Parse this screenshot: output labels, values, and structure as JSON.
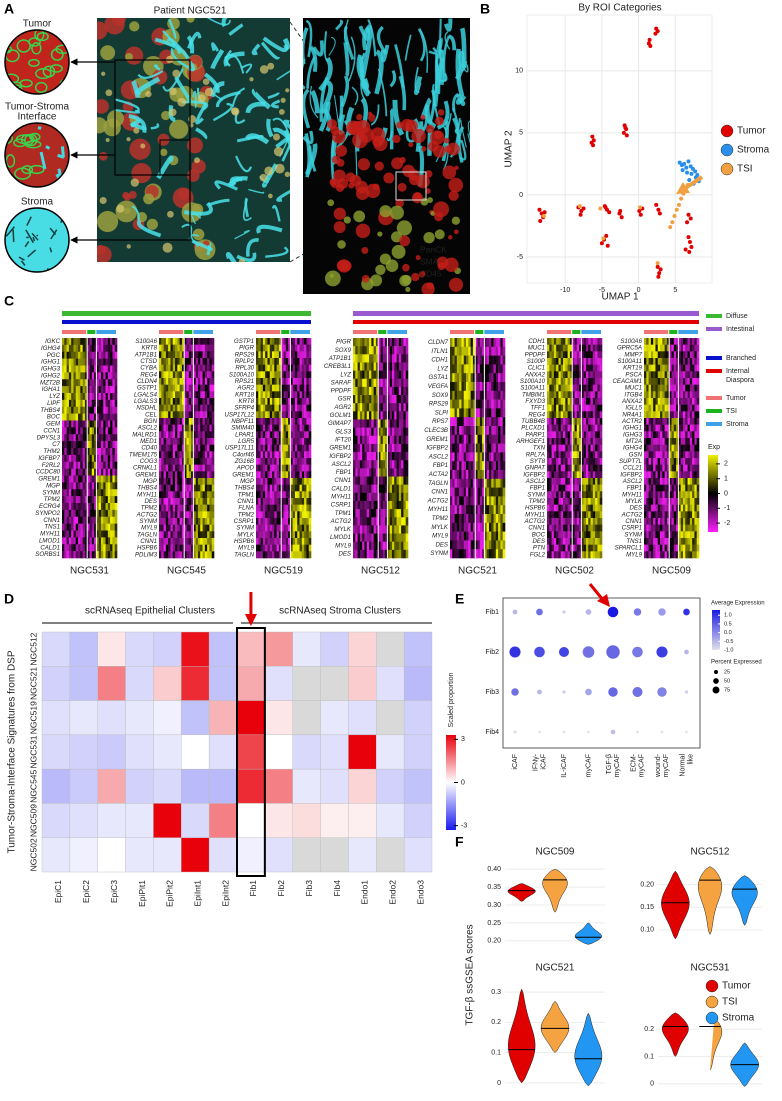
{
  "panel_labels": [
    "A",
    "B",
    "C",
    "D",
    "E",
    "F"
  ],
  "panel_a": {
    "title": "Patient NGC521",
    "insets": [
      {
        "lines": [
          "Tumor"
        ]
      },
      {
        "lines": [
          "Tumor-Stroma",
          "Interface"
        ]
      },
      {
        "lines": [
          "Stroma"
        ]
      }
    ],
    "stains": [
      {
        "name": "PanCK",
        "color": "#35d07a"
      },
      {
        "name": "SMA",
        "color": "#27b6e0"
      },
      {
        "name": "CD45",
        "color": "#e8322a"
      }
    ]
  },
  "panel_b": {
    "type": "scatter",
    "title": "By ROI Categories",
    "x_label": "UMAP 1",
    "y_label": "UMAP 2",
    "xlim": [
      -15.2,
      10
    ],
    "ylim": [
      -7.1,
      14.5
    ],
    "xticks": [
      -10,
      -5,
      0,
      5
    ],
    "yticks": [
      -5,
      0,
      5,
      10
    ],
    "grid": true,
    "series": [
      {
        "name": "Tumor",
        "color": "#e00000",
        "x": [
          2.4,
          2.6,
          2.3,
          1.4,
          1.6,
          1.5,
          -6.3,
          -6.1,
          -6.4,
          -6.2,
          -1.9,
          -1.7,
          -2.0,
          -1.6,
          -1.8,
          -13.5,
          -13.2,
          -13.0,
          -12.8,
          -13.4,
          -8.2,
          -7.8,
          -7.5,
          -7.9,
          -4.6,
          -4.3,
          -4.0,
          -4.5,
          -2.6,
          -2.3,
          -2.5,
          -5.0,
          -4.7,
          -4.4,
          -4.2,
          0.1,
          0.3,
          0.5,
          2.4,
          2.7,
          2.9,
          2.6,
          2.8,
          3.0,
          2.7,
          6.8,
          7.0,
          7.2,
          6.9,
          6.6,
          6.8,
          7.1,
          6.4
        ],
        "y": [
          13.4,
          13.2,
          13.0,
          12.2,
          12.0,
          12.5,
          4.7,
          4.4,
          4.2,
          4.0,
          5.6,
          5.3,
          5.0,
          4.8,
          5.4,
          -1.2,
          -1.5,
          -1.8,
          -1.4,
          -2.1,
          -1.0,
          -1.3,
          -1.1,
          -1.6,
          -0.9,
          -1.2,
          -1.4,
          -1.0,
          -1.5,
          -1.8,
          -1.3,
          -3.9,
          -3.6,
          -3.3,
          -4.1,
          -1.3,
          -1.6,
          -1.1,
          -0.8,
          -1.2,
          -1.5,
          -5.8,
          -6.3,
          -6.0,
          -6.6,
          -3.4,
          -3.8,
          -4.2,
          -4.6,
          -2.2,
          -1.6,
          -1.9,
          -4.4
        ]
      },
      {
        "name": "Stroma",
        "color": "#2a8fe8",
        "x": [
          5.6,
          5.9,
          6.2,
          6.5,
          6.8,
          7.1,
          7.4,
          7.7,
          8.0,
          8.3,
          6.0,
          6.6,
          7.2,
          7.8,
          8.2,
          6.9,
          7.5
        ],
        "y": [
          2.6,
          2.4,
          2.5,
          2.2,
          2.7,
          2.3,
          2.1,
          1.9,
          1.6,
          1.3,
          2.0,
          1.8,
          1.7,
          1.4,
          1.1,
          1.2,
          0.9
        ]
      },
      {
        "name": "TSI",
        "color": "#f0a040",
        "x": [
          4.3,
          4.6,
          4.9,
          5.2,
          5.5,
          5.8,
          6.1,
          6.4,
          6.7,
          2.6,
          -4.8,
          -5.2,
          -12.9,
          -8.0,
          0.2
        ],
        "y": [
          -2.6,
          -2.2,
          -1.7,
          -1.2,
          -0.8,
          -0.3,
          0.1,
          0.5,
          0.8,
          -5.5,
          -3.5,
          -1.1,
          -1.7,
          -0.9,
          -1.0
        ]
      }
    ]
  },
  "panel_c": {
    "highlight_color": "#e00000",
    "blocks": [
      {
        "name": "NGC531",
        "highlight": 20,
        "genes": [
          "IGKC",
          "IGHG4",
          "PGC",
          "IGHG1",
          "IGHG3",
          "IGHG2",
          "MZT2B",
          "IGHA1",
          "LYZ",
          "LIPF",
          "THBS4",
          "BOC",
          "GEM",
          "CCN1",
          "DPYSL3",
          "C7",
          "THM2",
          "IGFBP7",
          "F2RL2",
          "CCDC80",
          "GREM1",
          "MGP",
          "SYNM",
          "TPM2",
          "ECRG4",
          "SYNPO2",
          "CNN1",
          "TNS1",
          "MYH11",
          "LMOD1",
          "CALD1",
          "SORBS1"
        ]
      },
      {
        "name": "NGC545",
        "highlight": 20,
        "genes": [
          "S100A6",
          "KRT8",
          "ATP1B1",
          "CTSD",
          "CYBA",
          "REG4",
          "CLDN4",
          "GSTP1",
          "LGALS4",
          "LGALS3",
          "NSDHL",
          "CEL",
          "BGN",
          "ASCL2",
          "MALRD1",
          "MED1",
          "CD40",
          "TMEM175",
          "COG3",
          "CRNKL1",
          "GREM1",
          "MGP",
          "THBS4",
          "MYH11",
          "DES",
          "TPM2",
          "ACTG2",
          "SYNM",
          "MYL9",
          "TAGLN",
          "CNN1",
          "HSPB6",
          "PDLIM3"
        ]
      },
      {
        "name": "NGC519",
        "highlight": 20,
        "genes": [
          "GSTP1",
          "PIGR",
          "RPS29",
          "RPLP2",
          "RPL30",
          "S100A10",
          "RPS21",
          "AGR2",
          "KRT18",
          "KRT8",
          "SFRP4",
          "USP17L12",
          "NBPF11",
          "SMIM40",
          "LPAR1",
          "LGR5",
          "USP17L11",
          "C4orf46",
          "ZG16B",
          "APOD",
          "GREM1",
          "MGP",
          "THBS4",
          "TPM1",
          "CNN1",
          "FLNA",
          "TPM2",
          "CSRP1",
          "SYNM",
          "MYLK",
          "HSPB6",
          "MYL9",
          "TAGLN"
        ]
      },
      {
        "name": "NGC512",
        "highlight": 13,
        "genes": [
          "PIGR",
          "SOX9",
          "ATP1B1",
          "CREB3L1",
          "LYZ",
          "SARAF",
          "PPDPF",
          "GSR",
          "AGR2",
          "GOLM1",
          "GIMAP7",
          "GLS3",
          "IFT20",
          "GREM1",
          "IGFBP2",
          "ASCL2",
          "FBP1",
          "CNN1",
          "CALD1",
          "MYH11",
          "CSRP1",
          "TPM1",
          "ACTG2",
          "MYLK",
          "LMOD1",
          "MYL9",
          "DES"
        ]
      },
      {
        "name": "NGC521",
        "highlight": 11,
        "genes": [
          "CLDN7",
          "ITLN1",
          "CDH1",
          "LYZ",
          "GSTA1",
          "VEGFA",
          "SOX9",
          "RPS29",
          "SLPI",
          "RPS7",
          "CLEC3B",
          "GREM1",
          "IGFBP2",
          "ASCL2",
          "FBP1",
          "ACTA2",
          "TAGLN",
          "CNN1",
          "ACTG2",
          "MYH11",
          "TPM2",
          "MYLK",
          "MYL9",
          "DES",
          "SYNM"
        ]
      },
      {
        "name": "NGC502",
        "genes": [
          "CDH1",
          "MUC1",
          "PPDPF",
          "S100P",
          "CLIC1",
          "ANXA2",
          "S100A10",
          "S100A11",
          "TMBIM1",
          "FXYD3",
          "TFF1",
          "REG4",
          "TUBB4B",
          "PLCXD1",
          "PARP1",
          "ARHGEF1",
          "TXN",
          "RPL7A",
          "SYT8",
          "GNPAT",
          "IGFBP2",
          "ASCL2",
          "FBP1",
          "SYNM",
          "TPM2",
          "HSPB6",
          "MYH11",
          "ACTG2",
          "CNN1",
          "BOC",
          "DES",
          "PTN",
          "FGL2"
        ]
      },
      {
        "name": "NGC509",
        "genes": [
          "S100A6",
          "GPRC5A",
          "MMP7",
          "S100A11",
          "KRT19",
          "PSCA",
          "CEACAM1",
          "MUC1",
          "ITGB4",
          "ANXA2",
          "IGLL5",
          "NR4A1",
          "ACTR2",
          "IGHG1",
          "IGHG3",
          "MT2A",
          "IGHG4",
          "GSN",
          "SUPT7L",
          "CCL21",
          "IGFBP2",
          "ASCL2",
          "FBP1",
          "MYH11",
          "MYLK",
          "DES",
          "ACTG2",
          "CNN1",
          "CSRP1",
          "SYNM",
          "TNS1",
          "SPARCL1",
          "MYL9"
        ]
      }
    ],
    "histology": [
      {
        "lines": [
          "Diffuse"
        ],
        "color": "#3cb832"
      },
      {
        "lines": [
          "Intestinal"
        ],
        "color": "#9b59d0"
      }
    ],
    "growth": [
      {
        "lines": [
          "Branched"
        ],
        "color": "#0a10d0"
      },
      {
        "lines": [
          "Internal",
          "Diaspora"
        ],
        "color": "#e00000"
      }
    ],
    "region": [
      {
        "lines": [
          "Tumor"
        ],
        "color": "#f07272"
      },
      {
        "lines": [
          "TSI"
        ],
        "color": "#1db31d"
      },
      {
        "lines": [
          "Stroma"
        ],
        "color": "#3fa2e8"
      }
    ],
    "colorbar": {
      "title": "Exp",
      "ticks": [
        2,
        1,
        0,
        -1,
        -2
      ],
      "lim": [
        -2.6,
        2.6
      ]
    }
  },
  "panel_d": {
    "type": "heatmap",
    "y_label": "Tumor-Stroma-Interface Signatures from DSP",
    "groups": [
      "scRNAseq Epithelial Clusters",
      "scRNAseq Stroma Clusters"
    ],
    "columns": [
      "EpiC1",
      "EpiC2",
      "EpiC3",
      "EpiPit1",
      "EpiPit2",
      "EpiInt1",
      "EpiInt2",
      "Fib1",
      "Fib2",
      "Fib3",
      "Fib4",
      "Endo1",
      "Endo2",
      "Endo3"
    ],
    "rows": [
      "NGC512",
      "NGC521",
      "NGC519",
      "NGC531",
      "NGC545",
      "NGC509",
      "NGC502"
    ],
    "highlight_column": 7,
    "highlight_color": "#e00000",
    "values": [
      [
        -0.5,
        -0.8,
        0.3,
        -0.5,
        -0.6,
        2.8,
        -0.8,
        0.8,
        1.2,
        -0.3,
        -0.6,
        0.5,
        null,
        -0.8
      ],
      [
        -0.6,
        -0.8,
        1.5,
        -0.5,
        0.6,
        2.5,
        -0.8,
        1.0,
        -0.4,
        null,
        null,
        0.6,
        -0.4,
        -0.9
      ],
      [
        -0.4,
        -0.3,
        -0.4,
        -0.3,
        -0.2,
        -0.8,
        0.9,
        3.0,
        0.3,
        null,
        -0.3,
        -0.4,
        null,
        -0.6
      ],
      [
        -0.5,
        -0.6,
        -0.7,
        -0.4,
        -0.3,
        0.0,
        -0.4,
        2.2,
        0.0,
        -0.5,
        -0.4,
        3.0,
        -0.3,
        -0.6
      ],
      [
        -0.9,
        -0.7,
        1.0,
        -0.6,
        -0.5,
        -0.9,
        -0.9,
        2.5,
        1.5,
        -0.3,
        -0.4,
        0.5,
        -0.6,
        -0.8
      ],
      [
        -0.5,
        -0.4,
        -0.3,
        -0.3,
        3.0,
        -0.5,
        1.5,
        0.0,
        0.3,
        0.4,
        0.2,
        0.2,
        -0.3,
        -0.6
      ],
      [
        -0.3,
        -0.2,
        0.0,
        -0.3,
        -0.3,
        3.0,
        -0.4,
        -0.2,
        -0.4,
        null,
        null,
        -0.3,
        null,
        -0.4
      ]
    ],
    "colorbar": {
      "title": "Scaled proportion",
      "ticks": [
        3,
        0,
        -3
      ],
      "lim": [
        -3.3,
        3.3
      ]
    }
  },
  "panel_e": {
    "type": "dotplot",
    "rows": [
      "Fib1",
      "Fib2",
      "Fib3",
      "Fib4"
    ],
    "columns": [
      [
        "iCAF"
      ],
      [
        "IFNγ-",
        "iCAF"
      ],
      [
        "IL-iCAF"
      ],
      [
        "myCAF"
      ],
      [
        "TGF-β",
        "myCAF"
      ],
      [
        "ECM-",
        "myCAF"
      ],
      [
        "wound-",
        "myCAF"
      ],
      [
        "Normal",
        "like"
      ]
    ],
    "avg_expression": [
      [
        -0.5,
        0.3,
        -0.8,
        -0.5,
        1.3,
        0.2,
        -0.2,
        1.0
      ],
      [
        1.0,
        0.7,
        0.8,
        0.3,
        0.4,
        0.2,
        0.9,
        -0.5
      ],
      [
        0.3,
        -0.5,
        -0.8,
        -0.3,
        0.4,
        0.3,
        0.1,
        -0.8
      ],
      [
        -1.0,
        -1.0,
        -1.0,
        -1.0,
        -0.6,
        -1.0,
        -1.0,
        -1.0
      ]
    ],
    "pct_expressed": [
      [
        10,
        20,
        5,
        15,
        50,
        25,
        25,
        20
      ],
      [
        55,
        50,
        45,
        60,
        80,
        50,
        55,
        10
      ],
      [
        25,
        10,
        5,
        20,
        40,
        45,
        40,
        5
      ],
      [
        5,
        3,
        3,
        3,
        10,
        3,
        3,
        3
      ]
    ],
    "color_title": "Average Expression",
    "color_ticks": [
      {
        "value": 1.0,
        "label": "1.0"
      },
      0.5,
      {
        "value": 0.0,
        "label": "0.0"
      },
      -0.5,
      {
        "value": -1.0,
        "label": "-1.0"
      }
    ],
    "color_lim": [
      -1.0,
      1.3
    ],
    "size_title": "Percent Expressed",
    "size_ticks": [
      25,
      50,
      75
    ]
  },
  "panel_f": {
    "type": "violin",
    "y_label": "TGF-β ssGSEA scores",
    "groups": [
      {
        "name": "Tumor",
        "color": "#e00000"
      },
      {
        "name": "TSI",
        "color": "#f5a340"
      },
      {
        "name": "Stroma",
        "color": "#2196f3"
      }
    ],
    "plots": [
      {
        "title": "NGC509",
        "ylim": [
          0.18,
          0.42
        ],
        "yticks": [
          {
            "value": 0.4,
            "label": "0.40"
          },
          0.35,
          {
            "value": 0.3,
            "label": "0.30"
          },
          0.25,
          {
            "value": 0.2,
            "label": "0.20"
          }
        ],
        "min": [
          0.31,
          0.28,
          0.19
        ],
        "median": [
          0.34,
          0.37,
          0.21
        ],
        "max": [
          0.36,
          0.4,
          0.25
        ]
      },
      {
        "title": "NGC512",
        "ylim": [
          0.06,
          0.25
        ],
        "yticks": [
          {
            "value": 0.2,
            "label": "0.20"
          },
          0.15,
          {
            "value": 0.1,
            "label": "0.10"
          }
        ],
        "min": [
          0.08,
          0.09,
          0.11
        ],
        "median": [
          0.16,
          0.21,
          0.19
        ],
        "max": [
          0.23,
          0.24,
          0.22
        ]
      },
      {
        "title": "NGC521",
        "ylim": [
          -0.03,
          0.34
        ],
        "yticks": [
          0.3,
          0.2,
          0.1,
          0
        ],
        "min": [
          0.0,
          0.1,
          -0.01
        ],
        "median": [
          0.11,
          0.18,
          0.08
        ],
        "max": [
          0.31,
          0.27,
          0.23
        ]
      },
      {
        "title": "NGC531",
        "ylim": [
          -0.03,
          0.38
        ],
        "yticks": [
          0.2,
          0.1,
          0
        ],
        "min": [
          0.1,
          0.05,
          -0.01
        ],
        "median": [
          0.21,
          0.21,
          0.07
        ],
        "max": [
          0.26,
          0.25,
          0.15
        ]
      }
    ]
  }
}
